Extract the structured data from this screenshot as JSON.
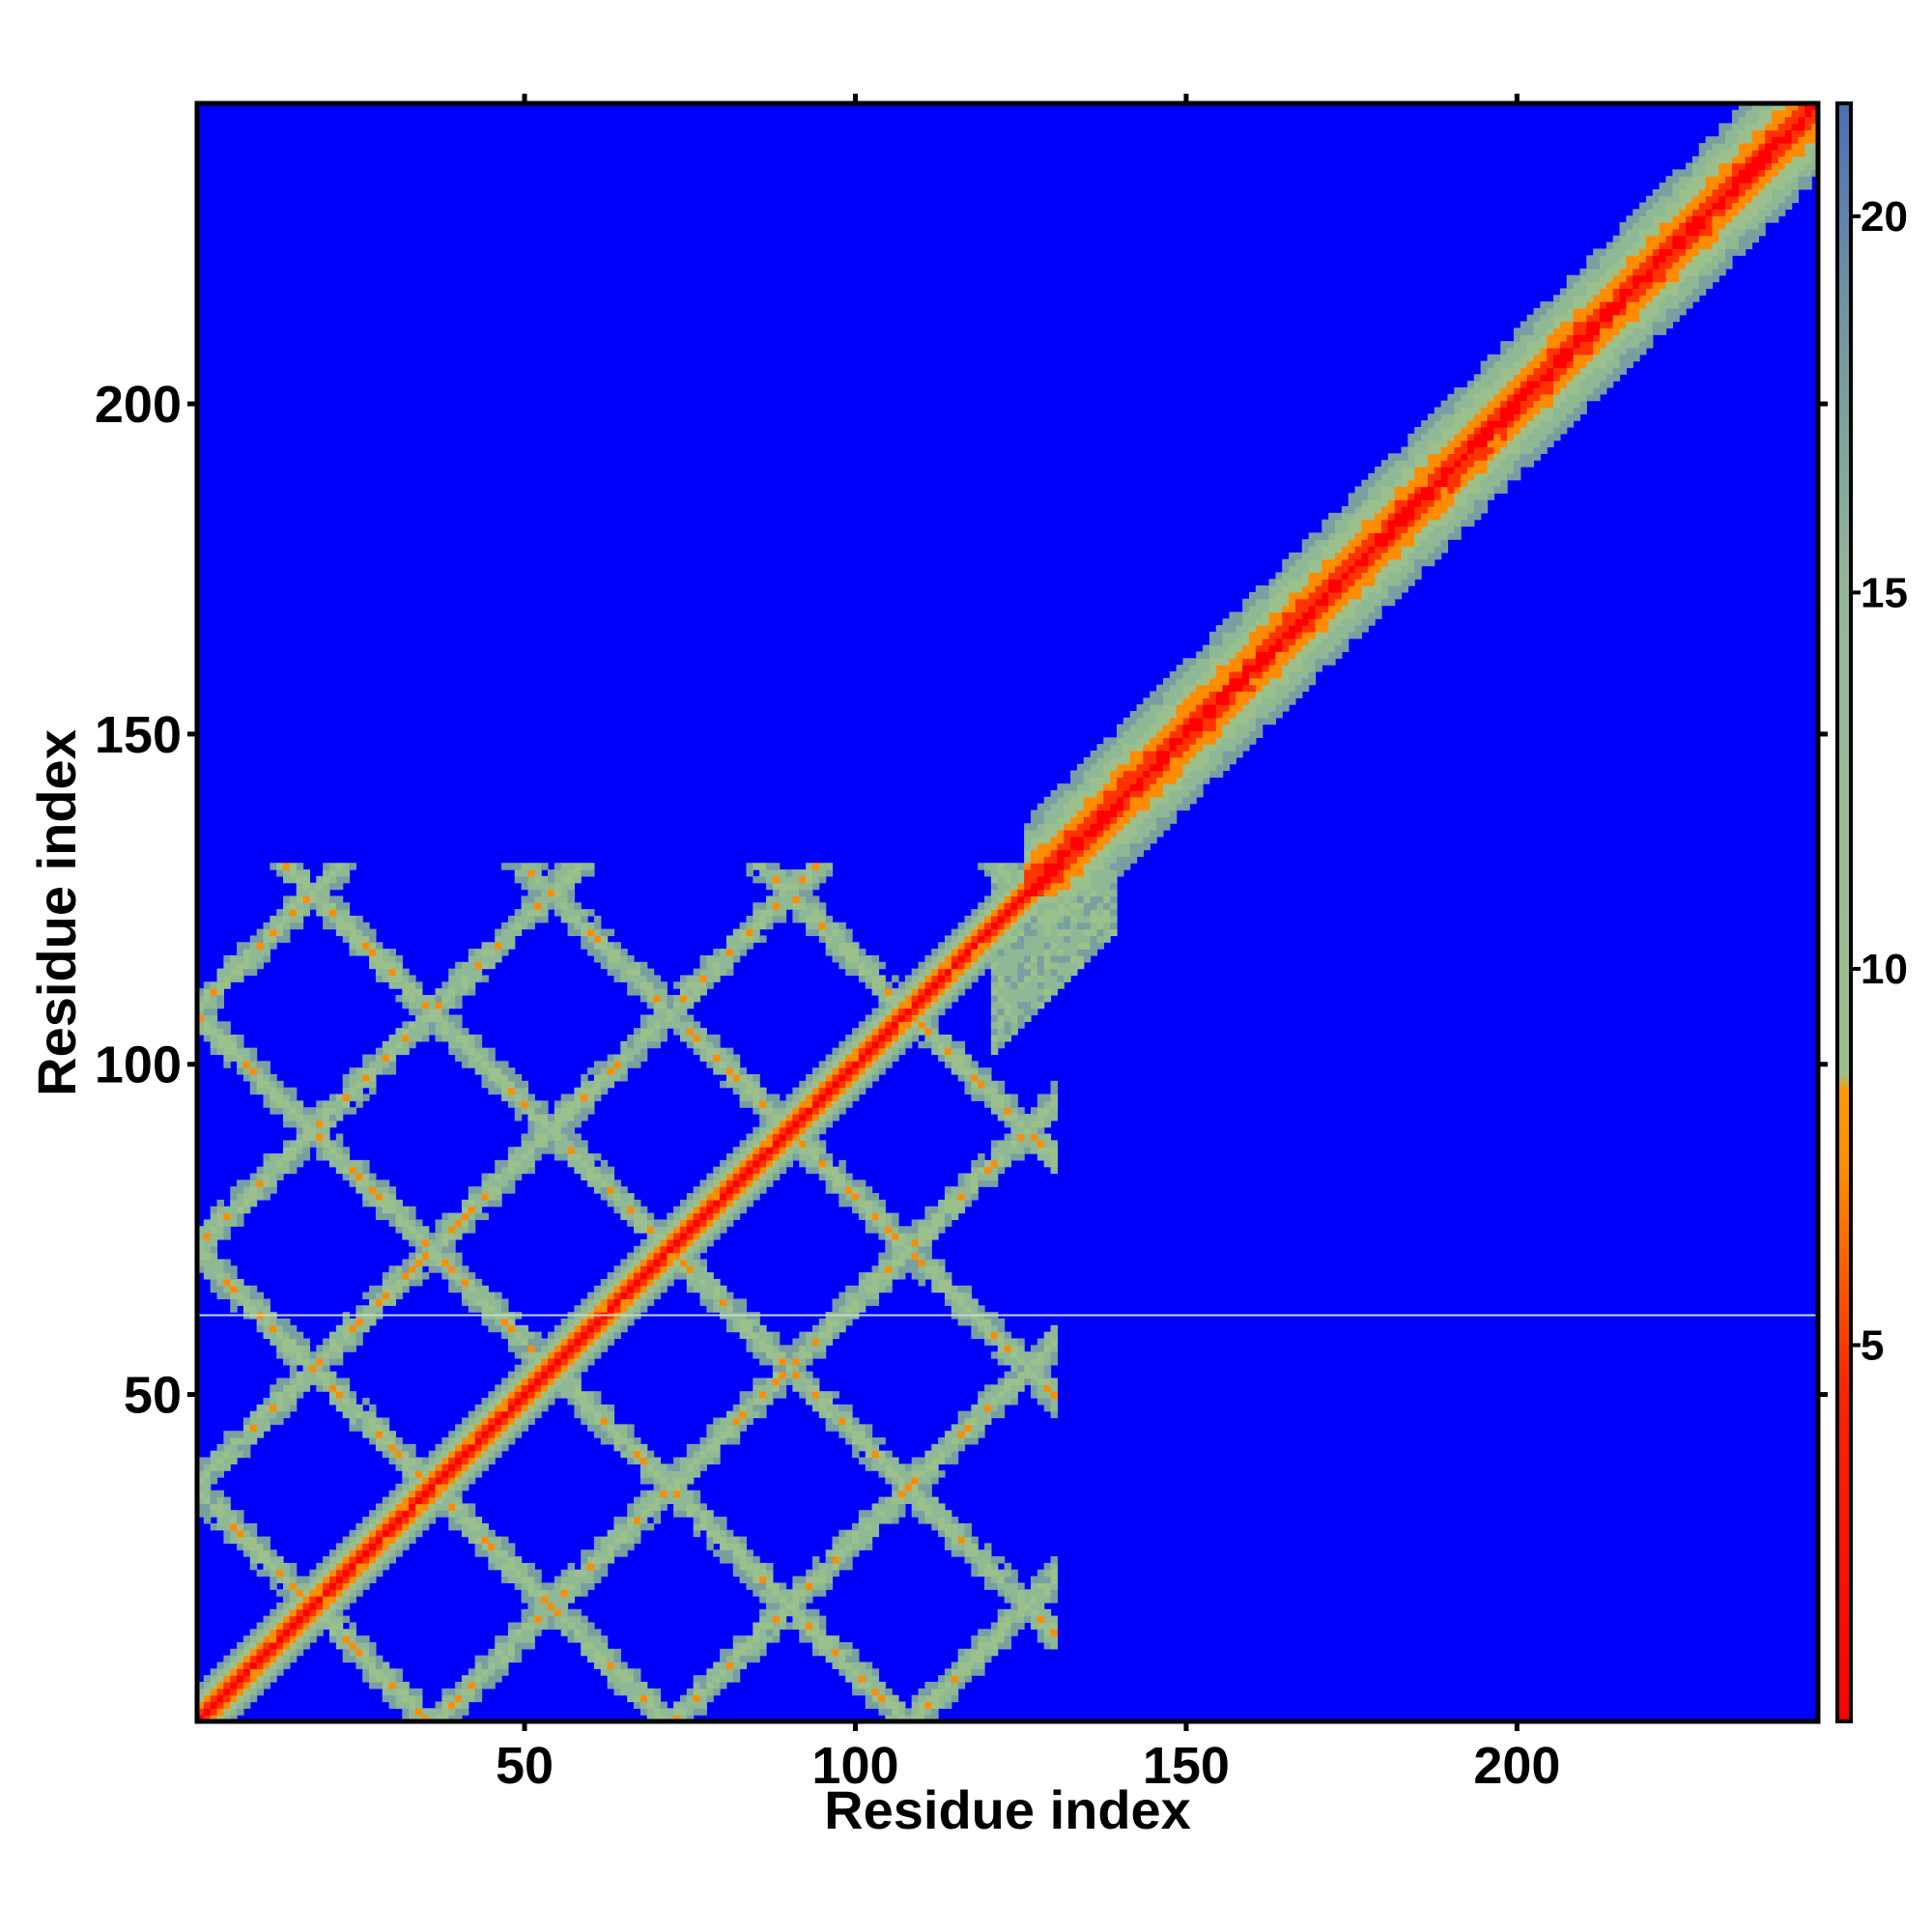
{
  "chart_data": {
    "type": "heatmap",
    "title": "",
    "xlabel": "Residue index",
    "ylabel": "Residue index",
    "xlim": [
      1,
      245
    ],
    "ylim": [
      1,
      245
    ],
    "x_ticks": [
      50,
      100,
      150,
      200
    ],
    "y_ticks": [
      50,
      100,
      150,
      200
    ],
    "colorbar": {
      "ticks": [
        5,
        10,
        15,
        20
      ],
      "range": [
        0,
        21.5
      ],
      "colors": {
        "low": "#ff0000",
        "mid_low": "#ff8c00",
        "mid": "#9cc08c",
        "high": "#5a7fa8",
        "background": "#0000ff"
      }
    },
    "description_features": {
      "diagonal": "contact band along the main diagonal for all residues 1-245",
      "domain_1_residues": [
        1,
        130
      ],
      "domain_2_residues": [
        130,
        245
      ],
      "off_diagonal_contacts": "checkerboard pattern of contacts within residues 1-130; domain 2 shows only a widened diagonal band"
    },
    "horizontal_line_at": 62
  }
}
